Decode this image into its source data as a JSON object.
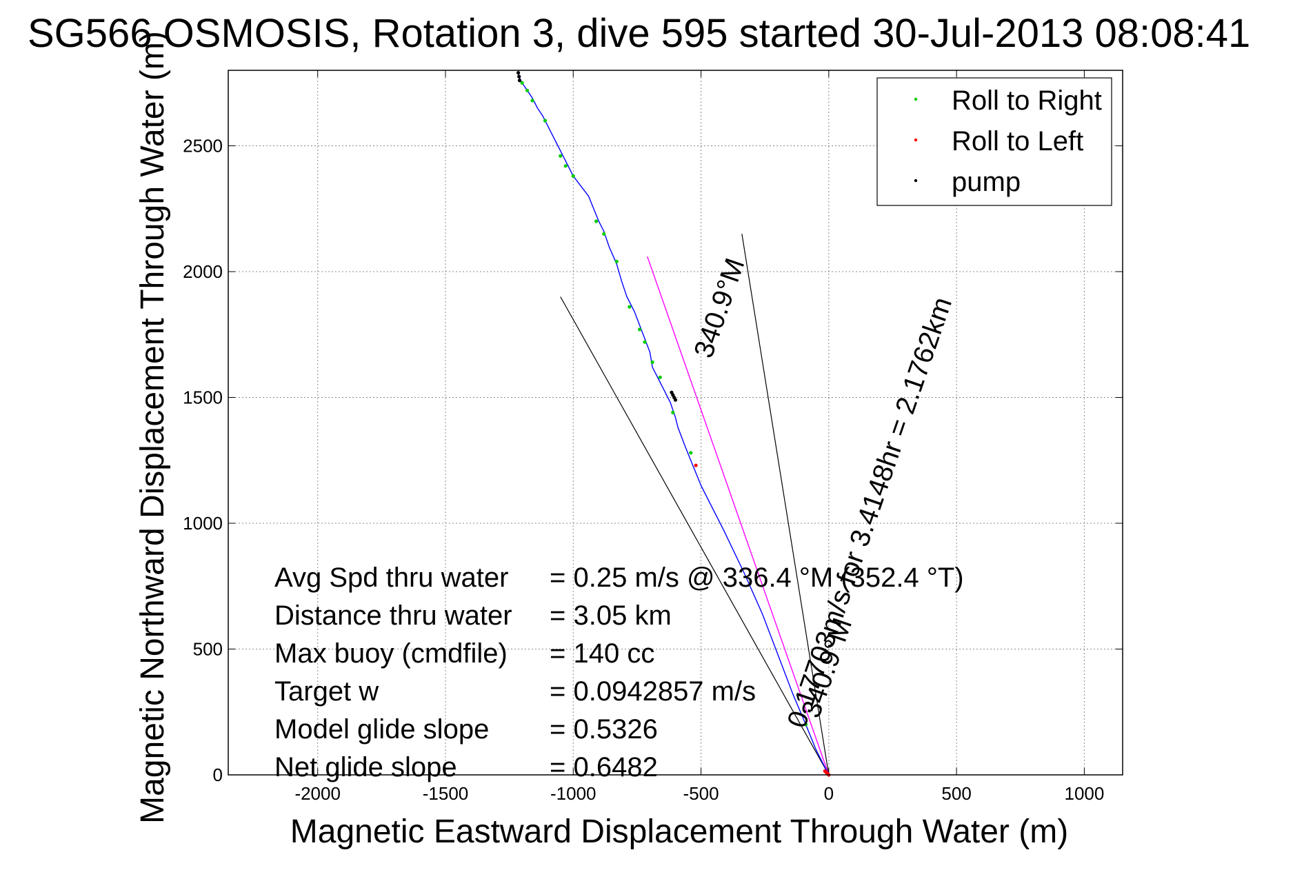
{
  "chart_data": {
    "type": "line",
    "title": "SG566 OSMOSIS, Rotation 3, dive 595 started 30-Jul-2013 08:08:41",
    "xlabel": "Magnetic Eastward Displacement Through Water (m)",
    "ylabel": "Magnetic Northward Displacement Through Water (m)",
    "xlim": [
      -2350,
      1150
    ],
    "ylim": [
      0,
      2800
    ],
    "xticks": [
      -2000,
      -1500,
      -1000,
      -500,
      0,
      500,
      1000
    ],
    "yticks": [
      0,
      500,
      1000,
      1500,
      2000,
      2500
    ],
    "x_tick_labels": [
      "-2000",
      "-1500",
      "-1000",
      "-500",
      "0",
      "500",
      "1000"
    ],
    "y_tick_labels": [
      "0",
      "500",
      "1000",
      "1500",
      "2000",
      "2500"
    ],
    "grid": true,
    "legend_position": "top-right",
    "legend": [
      {
        "label": "Roll to Right",
        "color": "#00cc00"
      },
      {
        "label": "Roll to Left",
        "color": "#ff0000"
      },
      {
        "label": "pump",
        "color": "#000000"
      }
    ],
    "track": {
      "name": "",
      "color": "#0000ff",
      "x": [
        0,
        -20,
        -50,
        -90,
        -140,
        -200,
        -260,
        -330,
        -410,
        -500,
        -560,
        -590,
        -600,
        -620,
        -660,
        -690,
        -700,
        -730,
        -760,
        -790,
        -810,
        -830,
        -860,
        -880,
        -900,
        -920,
        -940,
        -970,
        -1000,
        -1020,
        -1040,
        -1060,
        -1080,
        -1100,
        -1120,
        -1140,
        -1160,
        -1180,
        -1200,
        -1210,
        -1215
      ],
      "y": [
        0,
        40,
        100,
        200,
        320,
        480,
        640,
        800,
        970,
        1150,
        1300,
        1380,
        1420,
        1480,
        1560,
        1620,
        1680,
        1760,
        1840,
        1900,
        1960,
        2030,
        2100,
        2160,
        2200,
        2250,
        2300,
        2340,
        2380,
        2420,
        2460,
        2500,
        2540,
        2580,
        2620,
        2650,
        2690,
        2720,
        2750,
        2770,
        2790
      ]
    },
    "roll_right_points": {
      "x": [
        -90,
        -540,
        -610,
        -660,
        -690,
        -720,
        -740,
        -780,
        -830,
        -880,
        -910,
        -1000,
        -1030,
        -1050,
        -1110,
        -1160,
        -1180,
        -1200
      ],
      "y": [
        200,
        1280,
        1440,
        1580,
        1640,
        1720,
        1770,
        1860,
        2040,
        2150,
        2200,
        2380,
        2420,
        2460,
        2600,
        2680,
        2720,
        2750
      ]
    },
    "roll_left_points": {
      "x": [
        0,
        -5,
        -10,
        -15,
        -520
      ],
      "y": [
        0,
        5,
        10,
        15,
        1230
      ]
    },
    "pump_points": {
      "x": [
        -600,
        -605,
        -610,
        -615,
        -1210,
        -1212,
        -1215
      ],
      "y": [
        1490,
        1500,
        1510,
        1520,
        2760,
        2775,
        2790
      ]
    },
    "current_vector": {
      "color": "#ff00ff",
      "x": [
        0,
        -710
      ],
      "y": [
        0,
        2060
      ]
    },
    "cone_lines": {
      "color": "#000000",
      "lines": [
        {
          "x": [
            0,
            -1050
          ],
          "y": [
            0,
            1900
          ]
        },
        {
          "x": [
            0,
            -340
          ],
          "y": [
            0,
            2150
          ]
        }
      ]
    },
    "annotations": [
      {
        "text": "0.17703m/s for 3.4148hr = 2.1762km",
        "x": -95,
        "y": 180,
        "angle_deg": -71
      },
      {
        "text": "340.9°M",
        "x": -40,
        "y": 220,
        "angle_deg": -71
      },
      {
        "text": "340.9°M",
        "x": -460,
        "y": 1650,
        "angle_deg": -71
      }
    ],
    "stats": [
      {
        "label": "Avg Spd thru water",
        "value": "=  0.25 m/s @ 336.4 °M (352.4 °T)"
      },
      {
        "label": "Distance thru water",
        "value": "=  3.05 km"
      },
      {
        "label": "Max buoy (cmdfile)",
        "value": "= 140 cc"
      },
      {
        "label": "Target w",
        "value": "= 0.0942857 m/s"
      },
      {
        "label": "Model glide slope",
        "value": "= 0.5326"
      },
      {
        "label": "Net glide slope",
        "value": "= 0.6482"
      }
    ]
  }
}
